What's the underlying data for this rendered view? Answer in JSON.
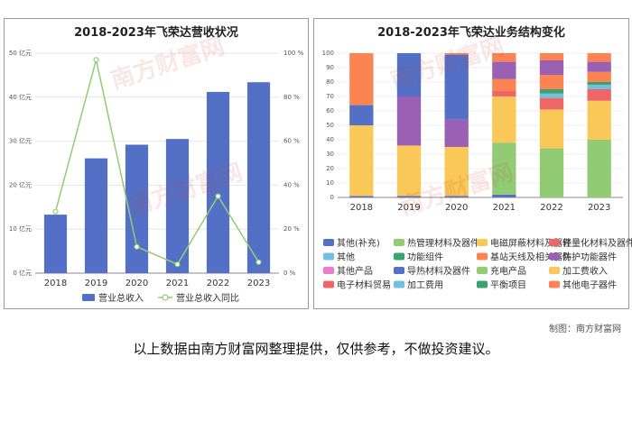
{
  "credit": "制图：南方财富网",
  "disclaimer": "以上数据由南方财富网整理提供，仅供参考，不做投资建议。",
  "watermark": "南方财富网",
  "chart_data": [
    {
      "type": "bar",
      "title": "2018-2023年飞荣达营收状况",
      "categories": [
        "2018",
        "2019",
        "2020",
        "2021",
        "2022",
        "2023"
      ],
      "ylim": [
        0,
        50
      ],
      "yticks": [
        "0 亿元",
        "10 亿元",
        "20 亿元",
        "30 亿元",
        "40 亿元",
        "50 亿元"
      ],
      "y2lim": [
        0,
        100
      ],
      "y2ticks": [
        "0 %",
        "20 %",
        "40 %",
        "60 %",
        "80 %",
        "100 %"
      ],
      "series": [
        {
          "name": "营业总收入",
          "type": "bar",
          "color": "#5470c6",
          "values": [
            13.3,
            26.1,
            29.2,
            30.5,
            41.2,
            43.4
          ]
        },
        {
          "name": "营业总收入同比",
          "type": "line",
          "axis": "right",
          "color": "#91cc75",
          "values": [
            28,
            97,
            12,
            4,
            35,
            5
          ]
        }
      ],
      "legend_position": "bottom"
    },
    {
      "type": "stacked-bar",
      "title": "2018-2023年飞荣达业务结构变化",
      "categories": [
        "2018",
        "2019",
        "2020",
        "2021",
        "2022",
        "2023"
      ],
      "ylim": [
        0,
        100
      ],
      "yticks": [
        "0",
        "10",
        "20",
        "30",
        "40",
        "50",
        "60",
        "70",
        "80",
        "90",
        "100"
      ],
      "series": [
        {
          "name": "其他(补充)",
          "color": "#5470c6",
          "values": [
            1,
            1,
            1,
            2,
            0,
            0
          ]
        },
        {
          "name": "热管理材料及器件",
          "color": "#91cc75",
          "values": [
            0,
            0,
            0,
            36,
            34,
            40
          ]
        },
        {
          "name": "电磁屏蔽材料及器件",
          "color": "#fac858",
          "values": [
            49,
            35,
            34,
            32,
            27,
            27
          ]
        },
        {
          "name": "轻量化材料及器件",
          "color": "#ee6666",
          "values": [
            0,
            0,
            0,
            4,
            8,
            8
          ]
        },
        {
          "name": "其他",
          "color": "#73c0de",
          "values": [
            0,
            0,
            0,
            0,
            3,
            3
          ]
        },
        {
          "name": "功能组件",
          "color": "#3ba272",
          "values": [
            0,
            0,
            0,
            0,
            3,
            2
          ]
        },
        {
          "name": "基站天线及相关器件",
          "color": "#fc8452",
          "values": [
            0,
            0,
            0,
            8,
            10,
            7
          ]
        },
        {
          "name": "防护功能器件",
          "color": "#9a60b4",
          "values": [
            0,
            34,
            19,
            12,
            10,
            7
          ]
        },
        {
          "name": "其他产品",
          "color": "#ea7ccc",
          "values": [
            0,
            0,
            0,
            0,
            0,
            0
          ]
        },
        {
          "name": "导热材料及器件",
          "color": "#5470c6",
          "values": [
            14,
            30,
            45,
            0,
            0,
            0
          ]
        },
        {
          "name": "充电产品",
          "color": "#91cc75",
          "values": [
            0,
            0,
            0,
            0,
            0,
            0
          ]
        },
        {
          "name": "加工费收入",
          "color": "#fac858",
          "values": [
            0,
            0,
            0,
            0,
            0,
            0
          ]
        },
        {
          "name": "电子材料贸易",
          "color": "#ee6666",
          "values": [
            0,
            0,
            0,
            0,
            0,
            0
          ]
        },
        {
          "name": "加工费用",
          "color": "#73c0de",
          "values": [
            0,
            0,
            0,
            0,
            0,
            0
          ]
        },
        {
          "name": "平衡项目",
          "color": "#3ba272",
          "values": [
            0,
            0,
            0,
            0,
            0,
            0
          ]
        },
        {
          "name": "其他电子器件",
          "color": "#fc8452",
          "values": [
            36,
            0,
            1,
            6,
            5,
            6
          ]
        }
      ],
      "legend_position": "bottom"
    }
  ]
}
